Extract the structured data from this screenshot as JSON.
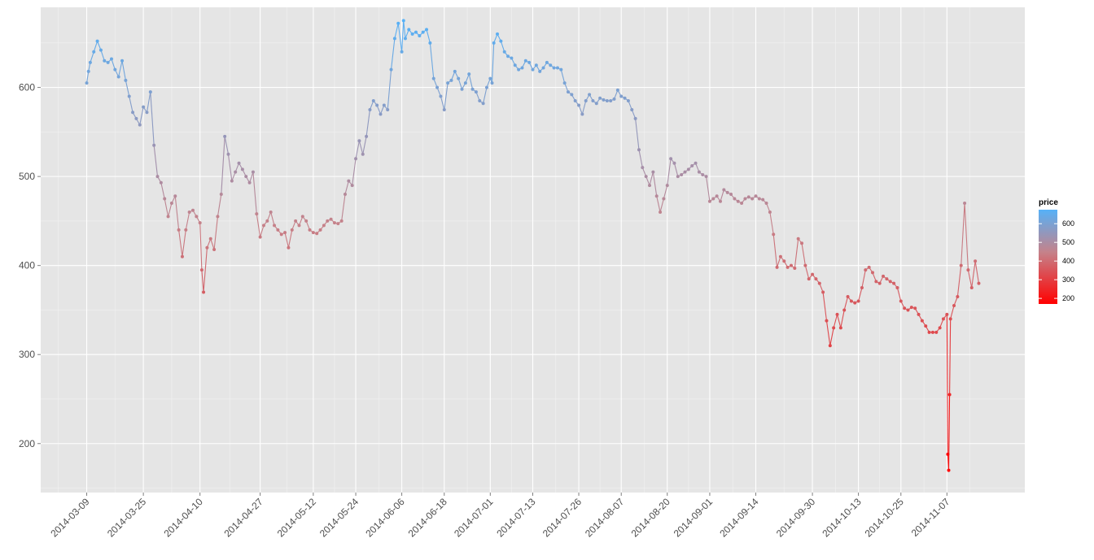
{
  "chart_data": {
    "type": "line",
    "title": "",
    "xlabel": "",
    "ylabel": "",
    "x_type": "date",
    "xlim": [
      "2014-02-24",
      "2014-11-29"
    ],
    "ylim": [
      145,
      690
    ],
    "y_ticks": [
      200,
      300,
      400,
      500,
      600
    ],
    "x_ticks": [
      "2014-03-09",
      "2014-03-25",
      "2014-04-10",
      "2014-04-27",
      "2014-05-12",
      "2014-05-24",
      "2014-06-06",
      "2014-06-18",
      "2014-07-01",
      "2014-07-13",
      "2014-07-26",
      "2014-08-07",
      "2014-08-20",
      "2014-09-01",
      "2014-09-14",
      "2014-09-30",
      "2014-10-13",
      "2014-10-25",
      "2014-11-07"
    ],
    "grid": true,
    "background": "#e5e5e5",
    "legend": {
      "title": "price",
      "position": "right",
      "labels": [
        "600",
        "500",
        "400",
        "300",
        "200"
      ],
      "low_color": "#ff0000",
      "mid_color": "#c5828a",
      "high_color": "#56b1f7"
    },
    "series": [
      {
        "color_by": "price",
        "points": [
          [
            "2014-03-09",
            605
          ],
          [
            "2014-03-09",
            618
          ],
          [
            "2014-03-10",
            628
          ],
          [
            "2014-03-11",
            640
          ],
          [
            "2014-03-12",
            652
          ],
          [
            "2014-03-13",
            642
          ],
          [
            "2014-03-14",
            630
          ],
          [
            "2014-03-15",
            628
          ],
          [
            "2014-03-16",
            632
          ],
          [
            "2014-03-17",
            620
          ],
          [
            "2014-03-18",
            612
          ],
          [
            "2014-03-19",
            630
          ],
          [
            "2014-03-20",
            608
          ],
          [
            "2014-03-21",
            590
          ],
          [
            "2014-03-22",
            572
          ],
          [
            "2014-03-23",
            565
          ],
          [
            "2014-03-24",
            558
          ],
          [
            "2014-03-25",
            578
          ],
          [
            "2014-03-26",
            572
          ],
          [
            "2014-03-27",
            595
          ],
          [
            "2014-03-28",
            535
          ],
          [
            "2014-03-29",
            500
          ],
          [
            "2014-03-30",
            493
          ],
          [
            "2014-03-31",
            475
          ],
          [
            "2014-04-01",
            455
          ],
          [
            "2014-04-02",
            470
          ],
          [
            "2014-04-03",
            478
          ],
          [
            "2014-04-04",
            440
          ],
          [
            "2014-04-05",
            410
          ],
          [
            "2014-04-06",
            440
          ],
          [
            "2014-04-07",
            460
          ],
          [
            "2014-04-08",
            462
          ],
          [
            "2014-04-09",
            455
          ],
          [
            "2014-04-10",
            448
          ],
          [
            "2014-04-10",
            395
          ],
          [
            "2014-04-11",
            370
          ],
          [
            "2014-04-12",
            420
          ],
          [
            "2014-04-13",
            430
          ],
          [
            "2014-04-14",
            418
          ],
          [
            "2014-04-15",
            455
          ],
          [
            "2014-04-16",
            480
          ],
          [
            "2014-04-17",
            545
          ],
          [
            "2014-04-18",
            525
          ],
          [
            "2014-04-19",
            495
          ],
          [
            "2014-04-20",
            505
          ],
          [
            "2014-04-21",
            515
          ],
          [
            "2014-04-22",
            508
          ],
          [
            "2014-04-23",
            500
          ],
          [
            "2014-04-24",
            493
          ],
          [
            "2014-04-25",
            505
          ],
          [
            "2014-04-26",
            458
          ],
          [
            "2014-04-27",
            432
          ],
          [
            "2014-04-28",
            445
          ],
          [
            "2014-04-29",
            450
          ],
          [
            "2014-04-30",
            460
          ],
          [
            "2014-05-01",
            445
          ],
          [
            "2014-05-02",
            440
          ],
          [
            "2014-05-03",
            435
          ],
          [
            "2014-05-04",
            437
          ],
          [
            "2014-05-05",
            420
          ],
          [
            "2014-05-06",
            440
          ],
          [
            "2014-05-07",
            450
          ],
          [
            "2014-05-08",
            445
          ],
          [
            "2014-05-09",
            455
          ],
          [
            "2014-05-10",
            450
          ],
          [
            "2014-05-11",
            440
          ],
          [
            "2014-05-12",
            437
          ],
          [
            "2014-05-13",
            436
          ],
          [
            "2014-05-14",
            440
          ],
          [
            "2014-05-15",
            445
          ],
          [
            "2014-05-16",
            450
          ],
          [
            "2014-05-17",
            452
          ],
          [
            "2014-05-18",
            448
          ],
          [
            "2014-05-19",
            447
          ],
          [
            "2014-05-20",
            450
          ],
          [
            "2014-05-21",
            480
          ],
          [
            "2014-05-22",
            495
          ],
          [
            "2014-05-23",
            490
          ],
          [
            "2014-05-24",
            520
          ],
          [
            "2014-05-25",
            540
          ],
          [
            "2014-05-26",
            525
          ],
          [
            "2014-05-27",
            545
          ],
          [
            "2014-05-28",
            575
          ],
          [
            "2014-05-29",
            585
          ],
          [
            "2014-05-30",
            580
          ],
          [
            "2014-05-31",
            570
          ],
          [
            "2014-06-01",
            580
          ],
          [
            "2014-06-02",
            575
          ],
          [
            "2014-06-03",
            620
          ],
          [
            "2014-06-04",
            655
          ],
          [
            "2014-06-05",
            672
          ],
          [
            "2014-06-06",
            640
          ],
          [
            "2014-06-06",
            675
          ],
          [
            "2014-06-07",
            655
          ],
          [
            "2014-06-08",
            665
          ],
          [
            "2014-06-09",
            660
          ],
          [
            "2014-06-10",
            662
          ],
          [
            "2014-06-11",
            658
          ],
          [
            "2014-06-12",
            662
          ],
          [
            "2014-06-13",
            665
          ],
          [
            "2014-06-14",
            650
          ],
          [
            "2014-06-15",
            610
          ],
          [
            "2014-06-16",
            600
          ],
          [
            "2014-06-17",
            590
          ],
          [
            "2014-06-18",
            575
          ],
          [
            "2014-06-19",
            605
          ],
          [
            "2014-06-20",
            608
          ],
          [
            "2014-06-21",
            618
          ],
          [
            "2014-06-22",
            610
          ],
          [
            "2014-06-23",
            598
          ],
          [
            "2014-06-24",
            605
          ],
          [
            "2014-06-25",
            615
          ],
          [
            "2014-06-26",
            598
          ],
          [
            "2014-06-27",
            595
          ],
          [
            "2014-06-28",
            585
          ],
          [
            "2014-06-29",
            582
          ],
          [
            "2014-06-30",
            600
          ],
          [
            "2014-07-01",
            610
          ],
          [
            "2014-07-01",
            605
          ],
          [
            "2014-07-02",
            650
          ],
          [
            "2014-07-03",
            660
          ],
          [
            "2014-07-04",
            652
          ],
          [
            "2014-07-05",
            640
          ],
          [
            "2014-07-06",
            635
          ],
          [
            "2014-07-07",
            633
          ],
          [
            "2014-07-08",
            625
          ],
          [
            "2014-07-09",
            620
          ],
          [
            "2014-07-10",
            622
          ],
          [
            "2014-07-11",
            630
          ],
          [
            "2014-07-12",
            628
          ],
          [
            "2014-07-13",
            620
          ],
          [
            "2014-07-14",
            625
          ],
          [
            "2014-07-15",
            618
          ],
          [
            "2014-07-16",
            622
          ],
          [
            "2014-07-17",
            628
          ],
          [
            "2014-07-18",
            625
          ],
          [
            "2014-07-19",
            622
          ],
          [
            "2014-07-20",
            622
          ],
          [
            "2014-07-21",
            620
          ],
          [
            "2014-07-22",
            605
          ],
          [
            "2014-07-23",
            595
          ],
          [
            "2014-07-24",
            592
          ],
          [
            "2014-07-25",
            585
          ],
          [
            "2014-07-26",
            580
          ],
          [
            "2014-07-27",
            570
          ],
          [
            "2014-07-28",
            585
          ],
          [
            "2014-07-29",
            592
          ],
          [
            "2014-07-30",
            585
          ],
          [
            "2014-07-31",
            582
          ],
          [
            "2014-08-01",
            588
          ],
          [
            "2014-08-02",
            586
          ],
          [
            "2014-08-03",
            585
          ],
          [
            "2014-08-04",
            585
          ],
          [
            "2014-08-05",
            587
          ],
          [
            "2014-08-06",
            597
          ],
          [
            "2014-08-07",
            590
          ],
          [
            "2014-08-08",
            588
          ],
          [
            "2014-08-09",
            585
          ],
          [
            "2014-08-10",
            575
          ],
          [
            "2014-08-11",
            565
          ],
          [
            "2014-08-12",
            530
          ],
          [
            "2014-08-13",
            510
          ],
          [
            "2014-08-14",
            500
          ],
          [
            "2014-08-15",
            490
          ],
          [
            "2014-08-16",
            505
          ],
          [
            "2014-08-17",
            478
          ],
          [
            "2014-08-18",
            460
          ],
          [
            "2014-08-19",
            475
          ],
          [
            "2014-08-20",
            490
          ],
          [
            "2014-08-21",
            520
          ],
          [
            "2014-08-22",
            515
          ],
          [
            "2014-08-23",
            500
          ],
          [
            "2014-08-24",
            502
          ],
          [
            "2014-08-25",
            505
          ],
          [
            "2014-08-26",
            508
          ],
          [
            "2014-08-27",
            512
          ],
          [
            "2014-08-28",
            515
          ],
          [
            "2014-08-29",
            505
          ],
          [
            "2014-08-30",
            502
          ],
          [
            "2014-08-31",
            500
          ],
          [
            "2014-09-01",
            472
          ],
          [
            "2014-09-02",
            475
          ],
          [
            "2014-09-03",
            478
          ],
          [
            "2014-09-04",
            472
          ],
          [
            "2014-09-05",
            485
          ],
          [
            "2014-09-06",
            482
          ],
          [
            "2014-09-07",
            480
          ],
          [
            "2014-09-08",
            475
          ],
          [
            "2014-09-09",
            472
          ],
          [
            "2014-09-10",
            470
          ],
          [
            "2014-09-11",
            475
          ],
          [
            "2014-09-12",
            477
          ],
          [
            "2014-09-13",
            475
          ],
          [
            "2014-09-14",
            478
          ],
          [
            "2014-09-15",
            475
          ],
          [
            "2014-09-16",
            474
          ],
          [
            "2014-09-17",
            470
          ],
          [
            "2014-09-18",
            460
          ],
          [
            "2014-09-19",
            435
          ],
          [
            "2014-09-20",
            398
          ],
          [
            "2014-09-21",
            410
          ],
          [
            "2014-09-22",
            405
          ],
          [
            "2014-09-23",
            398
          ],
          [
            "2014-09-24",
            400
          ],
          [
            "2014-09-25",
            397
          ],
          [
            "2014-09-26",
            430
          ],
          [
            "2014-09-27",
            425
          ],
          [
            "2014-09-28",
            400
          ],
          [
            "2014-09-29",
            385
          ],
          [
            "2014-09-30",
            390
          ],
          [
            "2014-10-01",
            385
          ],
          [
            "2014-10-02",
            380
          ],
          [
            "2014-10-03",
            370
          ],
          [
            "2014-10-04",
            338
          ],
          [
            "2014-10-05",
            310
          ],
          [
            "2014-10-06",
            330
          ],
          [
            "2014-10-07",
            345
          ],
          [
            "2014-10-08",
            330
          ],
          [
            "2014-10-09",
            350
          ],
          [
            "2014-10-10",
            365
          ],
          [
            "2014-10-11",
            360
          ],
          [
            "2014-10-12",
            358
          ],
          [
            "2014-10-13",
            360
          ],
          [
            "2014-10-14",
            375
          ],
          [
            "2014-10-15",
            395
          ],
          [
            "2014-10-16",
            398
          ],
          [
            "2014-10-17",
            392
          ],
          [
            "2014-10-18",
            382
          ],
          [
            "2014-10-19",
            380
          ],
          [
            "2014-10-20",
            388
          ],
          [
            "2014-10-21",
            385
          ],
          [
            "2014-10-22",
            382
          ],
          [
            "2014-10-23",
            380
          ],
          [
            "2014-10-24",
            375
          ],
          [
            "2014-10-25",
            360
          ],
          [
            "2014-10-26",
            352
          ],
          [
            "2014-10-27",
            350
          ],
          [
            "2014-10-28",
            353
          ],
          [
            "2014-10-29",
            352
          ],
          [
            "2014-10-30",
            345
          ],
          [
            "2014-10-31",
            338
          ],
          [
            "2014-11-01",
            332
          ],
          [
            "2014-11-02",
            325
          ],
          [
            "2014-11-03",
            325
          ],
          [
            "2014-11-04",
            325
          ],
          [
            "2014-11-05",
            330
          ],
          [
            "2014-11-06",
            340
          ],
          [
            "2014-11-07",
            345
          ],
          [
            "2014-11-07",
            188
          ],
          [
            "2014-11-07",
            170
          ],
          [
            "2014-11-07",
            255
          ],
          [
            "2014-11-08",
            340
          ],
          [
            "2014-11-09",
            355
          ],
          [
            "2014-11-10",
            365
          ],
          [
            "2014-11-11",
            400
          ],
          [
            "2014-11-12",
            470
          ],
          [
            "2014-11-13",
            395
          ],
          [
            "2014-11-14",
            375
          ],
          [
            "2014-11-15",
            405
          ],
          [
            "2014-11-16",
            380
          ]
        ]
      }
    ]
  }
}
